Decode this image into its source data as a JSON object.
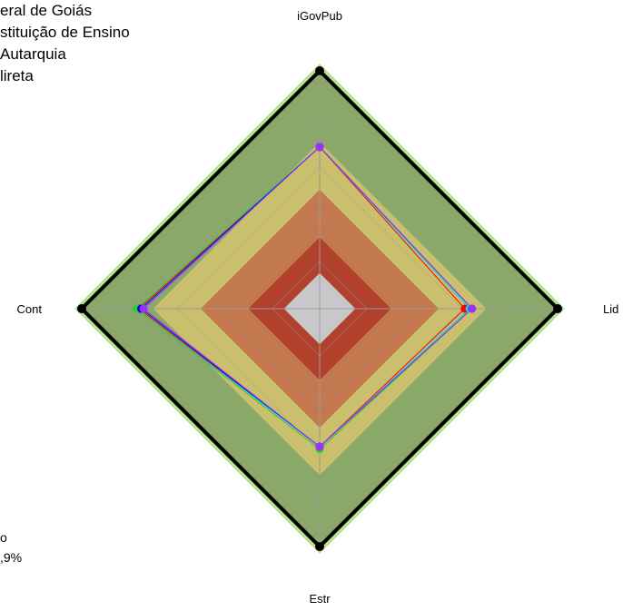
{
  "legend": {
    "lines": [
      "eral de Goiás",
      "stituição de Ensino",
      "Autarquia",
      "lireta"
    ]
  },
  "bottom_note": {
    "lines": [
      "o",
      ",9%"
    ]
  },
  "chart_data": {
    "type": "radar",
    "axes": [
      "iGovPub",
      "Lid",
      "Estr",
      "Cont"
    ],
    "rmax": 1.0,
    "bands": [
      {
        "from": 0.0,
        "to": 0.15,
        "color": "#c8c8c8"
      },
      {
        "from": 0.15,
        "to": 0.3,
        "color": "#b1412c"
      },
      {
        "from": 0.3,
        "to": 0.5,
        "color": "#c4784e"
      },
      {
        "from": 0.5,
        "to": 0.7,
        "color": "#c9bf6c"
      },
      {
        "from": 0.7,
        "to": 1.0,
        "color": "#8aa86a"
      }
    ],
    "outer_band_color": "#b7df8e",
    "outer_band_extra": 0.03,
    "max_polygon": {
      "values": [
        1.0,
        1.0,
        1.0,
        1.0
      ],
      "color": "#000000"
    },
    "series": [
      {
        "values": [
          0.68,
          0.61,
          0.58,
          0.76
        ],
        "color": "#ff0000"
      },
      {
        "values": [
          0.68,
          0.63,
          0.58,
          0.77
        ],
        "color": "#00e0e0"
      },
      {
        "values": [
          0.68,
          0.64,
          0.59,
          0.77
        ],
        "color": "#33cc33"
      },
      {
        "values": [
          0.68,
          0.64,
          0.58,
          0.75
        ],
        "color": "#0000ff"
      },
      {
        "values": [
          0.68,
          0.64,
          0.58,
          0.74
        ],
        "color": "#9933ff"
      }
    ]
  }
}
